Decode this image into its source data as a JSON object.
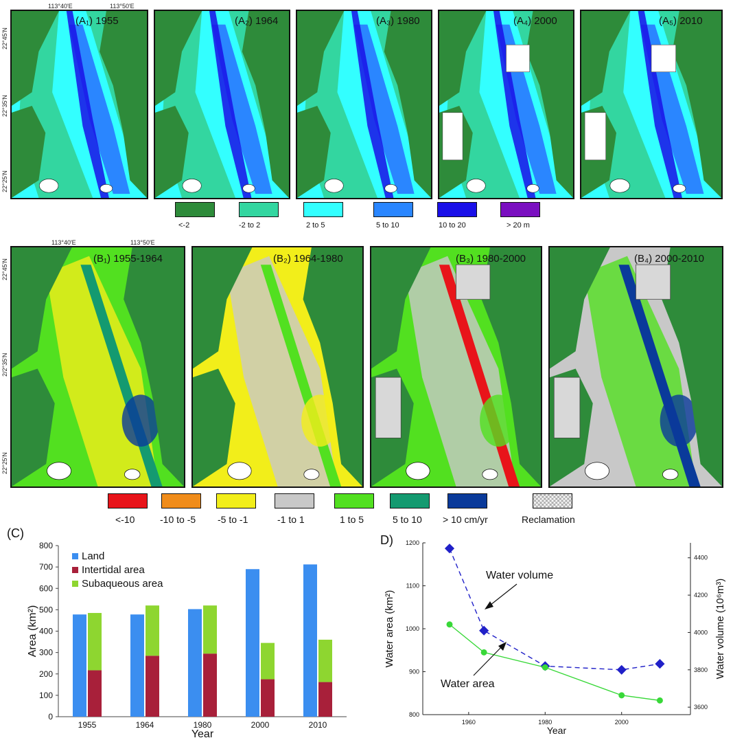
{
  "coords": {
    "lon1": "113°40'E",
    "lon2": "113°50'E",
    "lat1": "22°45'N",
    "lat2": "22°35'N",
    "lat3": "22°25'N",
    "lat2b": "2/2°35'N"
  },
  "panels_a": [
    "(A₁) 1955",
    "(A₂) 1964",
    "(A₃) 1980",
    "(A₄) 2000",
    "(A₅) 2010"
  ],
  "panels_b": [
    "(B₁) 1955-1964",
    "(B₂) 1964-1980",
    "(B₃) 1980-2000",
    "(B₄) 2000-2010"
  ],
  "legend_a": [
    {
      "label": "<-2",
      "color": "#2e8b3a"
    },
    {
      "label": "-2 to 2",
      "color": "#33d6a0"
    },
    {
      "label": "2 to 5",
      "color": "#33ffff"
    },
    {
      "label": "5 to 10",
      "color": "#2a86ff"
    },
    {
      "label": "10 to 20",
      "color": "#1a10e8"
    },
    {
      "label": "> 20 m",
      "color": "#7a0fc0"
    }
  ],
  "legend_b": [
    {
      "label": "<-10",
      "color": "#e8141a"
    },
    {
      "label": "-10 to -5",
      "color": "#f08c1a"
    },
    {
      "label": "-5 to -1",
      "color": "#f2ee1a"
    },
    {
      "label": "-1 to 1",
      "color": "#c8c8c8"
    },
    {
      "label": "1 to 5",
      "color": "#52e020"
    },
    {
      "label": "5 to 10",
      "color": "#149a70"
    },
    {
      "label": "> 10 cm/yr",
      "color": "#0a3a9a"
    },
    {
      "label": "Reclamation",
      "color": "hatch"
    }
  ],
  "chart_data": [
    {
      "type": "bar",
      "panel_label": "(C)",
      "categories": [
        "1955",
        "1964",
        "1980",
        "2000",
        "2010"
      ],
      "series": [
        {
          "name": "Land",
          "values": [
            478,
            478,
            503,
            690,
            712
          ],
          "color": "#3b8ef0"
        },
        {
          "name": "Intertidal area",
          "values": [
            217,
            285,
            295,
            175,
            162
          ],
          "color": "#a8203a"
        },
        {
          "name": "Subaqueous area",
          "values": [
            268,
            235,
            225,
            170,
            198
          ],
          "color": "#8ed630"
        }
      ],
      "stacked_series": [
        "Intertidal area",
        "Subaqueous area"
      ],
      "xlabel": "Year",
      "ylabel": "Area (km²)",
      "ylim": [
        0,
        800
      ],
      "yticks": [
        "0",
        "100",
        "200",
        "300",
        "400",
        "500",
        "600",
        "700",
        "800"
      ],
      "legend": "top-left"
    },
    {
      "type": "line",
      "panel_label": "D)",
      "x": [
        1955,
        1964,
        1980,
        2000,
        2010
      ],
      "series": [
        {
          "name": "Water volume",
          "values": [
            4450,
            4010,
            3820,
            3800,
            3832
          ],
          "axis": "right",
          "color": "#2020c8",
          "style": "dashed"
        },
        {
          "name": "Water area",
          "values": [
            1010,
            945,
            910,
            845,
            833
          ],
          "axis": "left",
          "color": "#38d838",
          "style": "solid"
        }
      ],
      "xlabel": "Year",
      "ylabel_left": "Water area (km²)",
      "ylabel_right": "Water volume (10⁶m³)",
      "xlim": [
        1948,
        2018
      ],
      "xticks": [
        "1960",
        "1980",
        "2000"
      ],
      "ylim_left": [
        800,
        1200
      ],
      "yticks_left": [
        "800",
        "900",
        "1000",
        "1100",
        "1200"
      ],
      "ylim_right": [
        3560,
        4480
      ],
      "yticks_right": [
        "3600",
        "3800",
        "4000",
        "4200",
        "4400"
      ]
    }
  ]
}
